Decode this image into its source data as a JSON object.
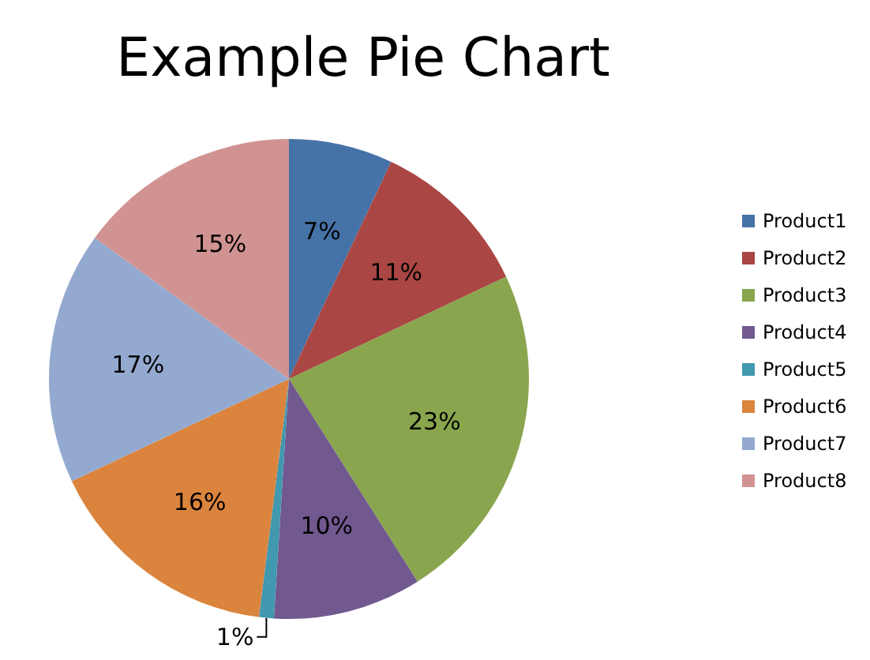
{
  "chart_data": {
    "type": "pie",
    "title": "Example Pie Chart",
    "categories": [
      "Product1",
      "Product2",
      "Product3",
      "Product4",
      "Product5",
      "Product6",
      "Product7",
      "Product8"
    ],
    "values": [
      7,
      11,
      23,
      10,
      1,
      16,
      17,
      15
    ],
    "value_labels": [
      "7%",
      "11%",
      "23%",
      "10%",
      "1%",
      "16%",
      "17%",
      "15%"
    ],
    "colors": [
      "#4572a7",
      "#aa4643",
      "#89a54e",
      "#71588f",
      "#4198af",
      "#db843d",
      "#93a9cf",
      "#d19392"
    ],
    "legend": "right"
  }
}
